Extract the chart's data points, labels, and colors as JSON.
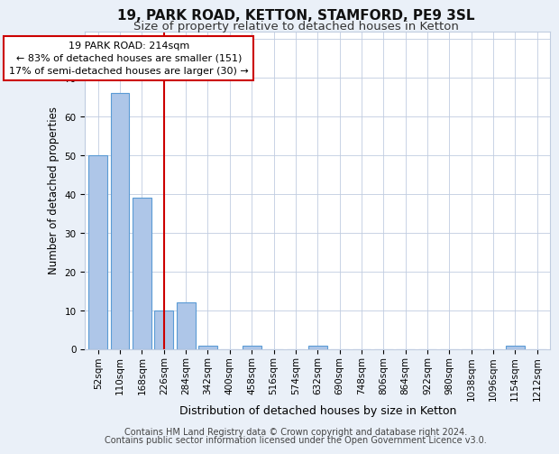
{
  "title1": "19, PARK ROAD, KETTON, STAMFORD, PE9 3SL",
  "title2": "Size of property relative to detached houses in Ketton",
  "xlabel": "Distribution of detached houses by size in Ketton",
  "ylabel": "Number of detached properties",
  "categories": [
    "52sqm",
    "110sqm",
    "168sqm",
    "226sqm",
    "284sqm",
    "342sqm",
    "400sqm",
    "458sqm",
    "516sqm",
    "574sqm",
    "632sqm",
    "690sqm",
    "748sqm",
    "806sqm",
    "864sqm",
    "922sqm",
    "980sqm",
    "1038sqm",
    "1096sqm",
    "1154sqm",
    "1212sqm"
  ],
  "values": [
    50,
    66,
    39,
    10,
    12,
    1,
    0,
    1,
    0,
    0,
    1,
    0,
    0,
    0,
    0,
    0,
    0,
    0,
    0,
    1,
    0
  ],
  "bar_color": "#aec6e8",
  "bar_edge_color": "#5b9bd5",
  "vline_x": 3.0,
  "vline_color": "#cc0000",
  "annotation_line1": "19 PARK ROAD: 214sqm",
  "annotation_line2": "← 83% of detached houses are smaller (151)",
  "annotation_line3": "17% of semi-detached houses are larger (30) →",
  "annotation_box_color": "#ffffff",
  "annotation_box_edge_color": "#cc0000",
  "ylim": [
    0,
    82
  ],
  "yticks": [
    0,
    10,
    20,
    30,
    40,
    50,
    60,
    70,
    80
  ],
  "footer1": "Contains HM Land Registry data © Crown copyright and database right 2024.",
  "footer2": "Contains public sector information licensed under the Open Government Licence v3.0.",
  "bg_color": "#eaf0f8",
  "plot_bg_color": "#ffffff",
  "grid_color": "#c0cce0",
  "title1_fontsize": 11,
  "title2_fontsize": 9.5,
  "xlabel_fontsize": 9,
  "ylabel_fontsize": 8.5,
  "tick_fontsize": 7.5,
  "annotation_fontsize": 8,
  "footer_fontsize": 7
}
